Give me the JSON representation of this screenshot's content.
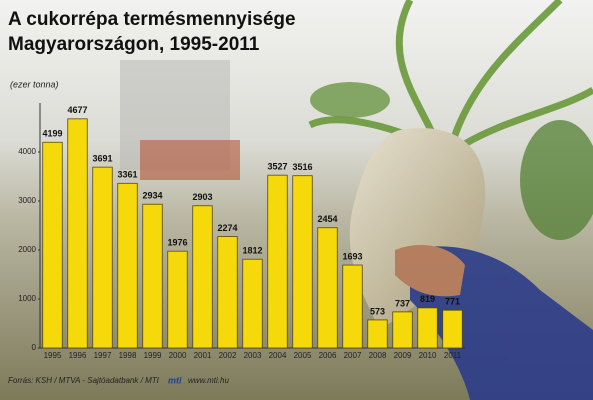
{
  "chart_data": {
    "type": "bar",
    "title": "A cukorrépa termésmennyisége",
    "subtitle": "Magyarországon, 1995-2011",
    "y_label": "(ezer tonna)",
    "categories": [
      "1995",
      "1996",
      "1997",
      "1998",
      "1999",
      "2000",
      "2001",
      "2002",
      "2003",
      "2004",
      "2005",
      "2006",
      "2007",
      "2008",
      "2009",
      "2010",
      "2011"
    ],
    "values": [
      4199,
      4677,
      3691,
      3361,
      2934,
      1976,
      2903,
      2274,
      1812,
      3527,
      3516,
      2454,
      1693,
      573,
      737,
      819,
      771
    ],
    "color": "#f5d90a",
    "ylim": [
      0,
      5000
    ],
    "yticks": [
      0,
      1000,
      2000,
      3000,
      4000
    ],
    "source": "Forrás: KSH / MTVA - Sajtóadatbank / MTI",
    "logo": "mti",
    "website": "www.mti.hu"
  }
}
